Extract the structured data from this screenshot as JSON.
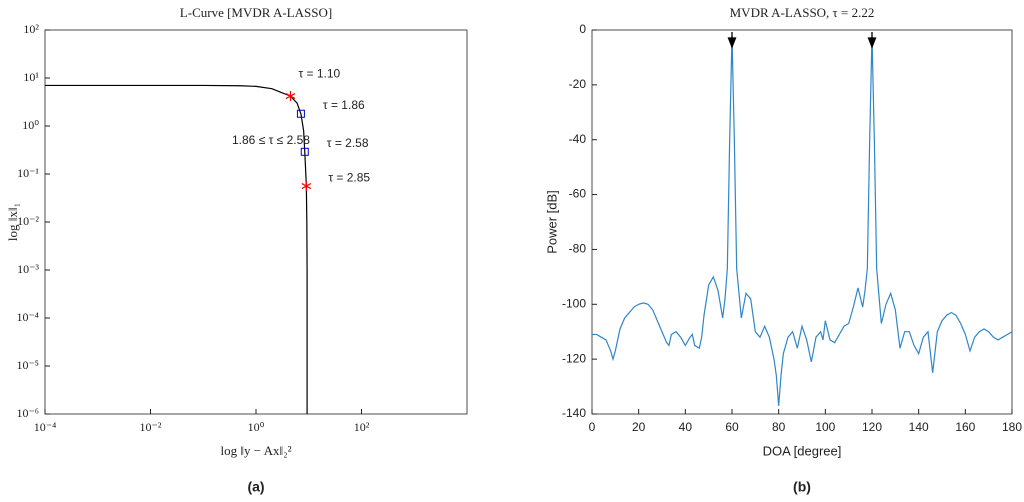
{
  "chart_data": [
    {
      "type": "line",
      "title": "L-Curve [MVDR A-LASSO]",
      "xlabel": "log ‖y − Ax‖₂²",
      "ylabel": "log ‖x‖₁",
      "caption": "(a)",
      "xscale": "log",
      "yscale": "log",
      "xlim": [
        0.0001,
        10000
      ],
      "ylim": [
        1e-06,
        100
      ],
      "xticks": [
        {
          "value": 0.0001,
          "label": "10⁻⁴"
        },
        {
          "value": 0.01,
          "label": "10⁻²"
        },
        {
          "value": 1,
          "label": "10⁰"
        },
        {
          "value": 100,
          "label": "10²"
        }
      ],
      "yticks": [
        {
          "value": 1e-06,
          "label": "10⁻⁶"
        },
        {
          "value": 1e-05,
          "label": "10⁻⁵"
        },
        {
          "value": 0.0001,
          "label": "10⁻⁴"
        },
        {
          "value": 0.001,
          "label": "10⁻³"
        },
        {
          "value": 0.01,
          "label": "10⁻²"
        },
        {
          "value": 0.1,
          "label": "10⁻¹"
        },
        {
          "value": 1,
          "label": "10⁰"
        },
        {
          "value": 10,
          "label": "10¹"
        },
        {
          "value": 100,
          "label": "10²"
        }
      ],
      "series": [
        {
          "color": "#000000",
          "x": [
            0.0001,
            0.001,
            0.01,
            0.1,
            0.5,
            1,
            2,
            3,
            4.5,
            6,
            7.1,
            8,
            8.4,
            8.8,
            9,
            9.2,
            9.3,
            9.3
          ],
          "values": [
            7,
            7,
            7,
            7,
            6.9,
            6.7,
            6,
            5,
            4.2,
            3,
            1.8,
            0.8,
            0.29,
            0.1,
            0.056,
            0.01,
            0.001,
            1e-06
          ]
        }
      ],
      "markers": [
        {
          "x": 4.5,
          "y": 4.2,
          "marker": "star",
          "color": "#ff0000",
          "label": "τ = 1.10"
        },
        {
          "x": 7.1,
          "y": 1.8,
          "marker": "square",
          "color": "#0000cc",
          "label": "τ = 1.86"
        },
        {
          "x": 8.4,
          "y": 0.29,
          "marker": "square",
          "color": "#0000cc",
          "label": "τ = 2.58"
        },
        {
          "x": 9,
          "y": 0.056,
          "marker": "star",
          "color": "#ff0000",
          "label": "τ = 2.85"
        }
      ],
      "annotation": "1.86 ≤ τ ≤ 2.58"
    },
    {
      "type": "line",
      "title": "MVDR A-LASSO, τ = 2.22",
      "xlabel": "DOA [degree]",
      "ylabel": "Power [dB]",
      "caption": "(b)",
      "xscale": "linear",
      "yscale": "linear",
      "xlim": [
        0,
        180
      ],
      "ylim": [
        -140,
        0
      ],
      "xticks": [
        0,
        20,
        40,
        60,
        80,
        100,
        120,
        140,
        160,
        180
      ],
      "yticks": [
        -140,
        -120,
        -100,
        -80,
        -60,
        -40,
        -20,
        0
      ],
      "series": [
        {
          "color": "#2f86c8",
          "x": [
            0,
            2,
            4,
            6,
            8,
            9,
            10,
            12,
            14,
            16,
            18,
            20,
            22,
            24,
            26,
            28,
            30,
            32,
            33,
            34,
            36,
            38,
            40,
            42,
            43,
            44,
            46,
            47,
            48,
            50,
            52,
            54,
            56,
            57,
            58,
            59,
            60,
            61,
            62,
            63,
            64,
            66,
            68,
            70,
            72,
            74,
            76,
            78,
            79,
            80,
            81,
            82,
            84,
            86,
            88,
            90,
            92,
            94,
            96,
            98,
            99,
            100,
            102,
            104,
            106,
            108,
            110,
            112,
            114,
            116,
            117,
            118,
            119,
            120,
            121,
            122,
            123,
            124,
            126,
            128,
            130,
            132,
            134,
            136,
            138,
            140,
            142,
            144,
            146,
            148,
            150,
            152,
            154,
            156,
            158,
            160,
            162,
            164,
            166,
            168,
            170,
            172,
            174,
            176,
            178,
            180
          ],
          "values": [
            -111,
            -111,
            -112,
            -113,
            -117,
            -120,
            -117,
            -109,
            -105,
            -103,
            -101,
            -100,
            -99.5,
            -100,
            -102,
            -106,
            -110,
            -114,
            -115,
            -111,
            -110,
            -112,
            -115,
            -112,
            -111,
            -115,
            -116,
            -112,
            -104,
            -93,
            -90,
            -95,
            -105,
            -98,
            -87,
            -40,
            -2,
            -40,
            -87,
            -96,
            -105,
            -96,
            -98,
            -110,
            -112,
            -108,
            -112,
            -120,
            -126,
            -137,
            -126,
            -118,
            -112,
            -110,
            -116,
            -108,
            -113,
            -121,
            -112,
            -110,
            -113,
            -106,
            -113,
            -114,
            -111,
            -108,
            -107,
            -101,
            -94,
            -101,
            -95,
            -87,
            -40,
            -2,
            -40,
            -87,
            -97,
            -107,
            -100,
            -96,
            -102,
            -116,
            -110,
            -110,
            -115,
            -118,
            -112,
            -110,
            -125,
            -110,
            -106,
            -104,
            -103,
            -104,
            -107,
            -111,
            -117,
            -112,
            -110,
            -109,
            -110,
            -112,
            -113,
            -112,
            -111,
            -110
          ]
        }
      ],
      "arrows": {
        "x": [
          60,
          120
        ],
        "color": "#000000"
      }
    }
  ]
}
